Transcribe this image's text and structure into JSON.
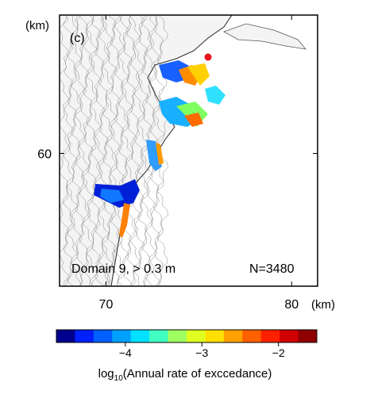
{
  "panel_label": "(c)",
  "x_unit": "(km)",
  "y_unit": "(km)",
  "annotation_left": "Domain 9, > 0.3 m",
  "annotation_right": "N=3480",
  "x_axis": {
    "ticks": [
      70,
      80
    ],
    "range": [
      67.5,
      81.4
    ]
  },
  "y_axis": {
    "ticks": [
      60
    ],
    "range": [
      48,
      72.5
    ]
  },
  "colorbar": {
    "ticks": [
      "−4",
      "−3",
      "−2"
    ],
    "tick_values": [
      -4,
      -3,
      -2
    ],
    "range": [
      -4.9,
      -1.5
    ],
    "label_prefix": "log",
    "label_sub": "10",
    "label_suffix": "(Annual rate of exccedance)",
    "colors": [
      "#00008f",
      "#0020ff",
      "#0060ff",
      "#00a0ff",
      "#00e0ff",
      "#40ffc0",
      "#a0ff60",
      "#e0ff20",
      "#ffe000",
      "#ffa000",
      "#ff6000",
      "#ff2000",
      "#d00000",
      "#8f0000"
    ]
  },
  "marker": {
    "label": "site",
    "x_km": 75.5,
    "y_km": 68.7,
    "color": "#e8141e"
  }
}
